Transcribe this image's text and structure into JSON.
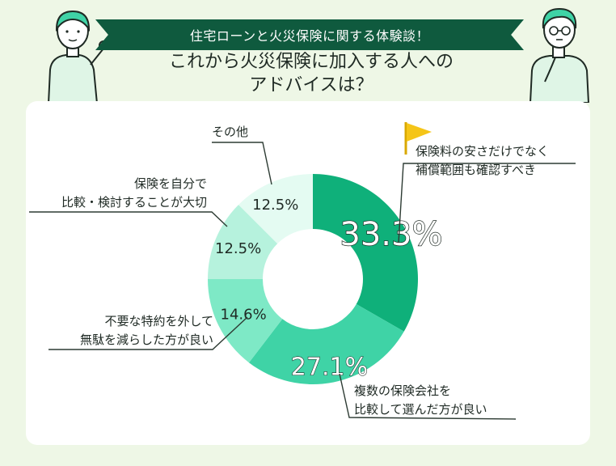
{
  "header": {
    "banner": "住宅ローンと火災保険に関する体験談！",
    "title_line1": "これから火災保険に加入する人への",
    "title_line2": "アドバイスは？"
  },
  "chart_data": {
    "type": "pie",
    "title": "これから火災保険に加入する人へのアドバイスは？",
    "donut": true,
    "slices": [
      {
        "label": "保険料の安さだけでなく補償範囲も確認すべき",
        "label_lines": [
          "保険料の安さだけでなく",
          "補償範囲も確認すべき"
        ],
        "value": 33.3,
        "display": "33.3%",
        "color": "#0fb07a"
      },
      {
        "label": "複数の保険会社を比較して選んだ方が良い",
        "label_lines": [
          "複数の保険会社を",
          "比較して選んだ方が良い"
        ],
        "value": 27.1,
        "display": "27.1%",
        "color": "#3fd3a6"
      },
      {
        "label": "不要な特約を外して無駄を減らした方が良い",
        "label_lines": [
          "不要な特約を外して",
          "無駄を減らした方が良い"
        ],
        "value": 14.6,
        "display": "14.6%",
        "color": "#7ee9c6"
      },
      {
        "label": "保険を自分で比較・検討することが大切",
        "label_lines": [
          "保険を自分で",
          "比較・検討することが大切"
        ],
        "value": 12.5,
        "display": "12.5%",
        "color": "#b6f2dd"
      },
      {
        "label": "その他",
        "label_lines": [
          "その他"
        ],
        "value": 12.5,
        "display": "12.5%",
        "color": "#e4fbf2"
      }
    ]
  },
  "colors": {
    "banner": "#0f5a3e",
    "background": "#eef7e6",
    "flag": "#f5c518",
    "leader": "#2d3b33"
  },
  "icons": {
    "flag": "flag-icon",
    "person_left": "pointing-person-illustration",
    "person_right": "thinking-person-illustration"
  }
}
